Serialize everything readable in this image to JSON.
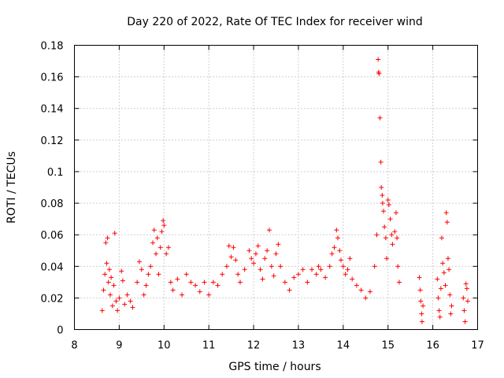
{
  "chart_data": {
    "type": "scatter",
    "title": "Day 220 of 2022, Rate Of TEC Index for receiver wind",
    "xlabel": "GPS time / hours",
    "ylabel": "ROTI / TECUs",
    "xlim": [
      8,
      17
    ],
    "ylim": [
      0,
      0.18
    ],
    "xticks": [
      "8",
      "9",
      "10",
      "11",
      "12",
      "13",
      "14",
      "15",
      "16",
      "17"
    ],
    "yticks": [
      "0",
      "0.02",
      "0.04",
      "0.06",
      "0.08",
      "0.1",
      "0.12",
      "0.14",
      "0.16",
      "0.18"
    ],
    "grid": true,
    "marker": "+",
    "color": "#ff0000",
    "series": [
      {
        "points": [
          [
            8.62,
            0.012
          ],
          [
            8.65,
            0.025
          ],
          [
            8.68,
            0.035
          ],
          [
            8.7,
            0.055
          ],
          [
            8.72,
            0.042
          ],
          [
            8.74,
            0.058
          ],
          [
            8.76,
            0.03
          ],
          [
            8.78,
            0.038
          ],
          [
            8.8,
            0.022
          ],
          [
            8.82,
            0.033
          ],
          [
            8.85,
            0.015
          ],
          [
            8.88,
            0.028
          ],
          [
            8.9,
            0.061
          ],
          [
            8.93,
            0.018
          ],
          [
            8.96,
            0.012
          ],
          [
            9.0,
            0.02
          ],
          [
            9.05,
            0.037
          ],
          [
            9.08,
            0.031
          ],
          [
            9.12,
            0.016
          ],
          [
            9.18,
            0.022
          ],
          [
            9.25,
            0.018
          ],
          [
            9.3,
            0.014
          ],
          [
            9.4,
            0.03
          ],
          [
            9.45,
            0.043
          ],
          [
            9.5,
            0.038
          ],
          [
            9.55,
            0.022
          ],
          [
            9.6,
            0.028
          ],
          [
            9.65,
            0.035
          ],
          [
            9.7,
            0.04
          ],
          [
            9.75,
            0.055
          ],
          [
            9.78,
            0.063
          ],
          [
            9.82,
            0.048
          ],
          [
            9.85,
            0.058
          ],
          [
            9.88,
            0.035
          ],
          [
            9.92,
            0.052
          ],
          [
            9.95,
            0.062
          ],
          [
            9.98,
            0.069
          ],
          [
            10.0,
            0.066
          ],
          [
            10.05,
            0.048
          ],
          [
            10.1,
            0.052
          ],
          [
            10.15,
            0.03
          ],
          [
            10.2,
            0.025
          ],
          [
            10.3,
            0.032
          ],
          [
            10.4,
            0.022
          ],
          [
            10.5,
            0.035
          ],
          [
            10.6,
            0.03
          ],
          [
            10.7,
            0.028
          ],
          [
            10.8,
            0.024
          ],
          [
            10.9,
            0.03
          ],
          [
            11.0,
            0.022
          ],
          [
            11.1,
            0.03
          ],
          [
            11.2,
            0.028
          ],
          [
            11.3,
            0.035
          ],
          [
            11.4,
            0.04
          ],
          [
            11.45,
            0.053
          ],
          [
            11.5,
            0.046
          ],
          [
            11.55,
            0.052
          ],
          [
            11.6,
            0.044
          ],
          [
            11.65,
            0.035
          ],
          [
            11.7,
            0.03
          ],
          [
            11.8,
            0.038
          ],
          [
            11.9,
            0.05
          ],
          [
            11.95,
            0.045
          ],
          [
            12.0,
            0.042
          ],
          [
            12.05,
            0.048
          ],
          [
            12.1,
            0.053
          ],
          [
            12.15,
            0.038
          ],
          [
            12.2,
            0.032
          ],
          [
            12.25,
            0.045
          ],
          [
            12.3,
            0.05
          ],
          [
            12.35,
            0.063
          ],
          [
            12.4,
            0.04
          ],
          [
            12.45,
            0.034
          ],
          [
            12.5,
            0.048
          ],
          [
            12.55,
            0.054
          ],
          [
            12.6,
            0.04
          ],
          [
            12.7,
            0.03
          ],
          [
            12.8,
            0.025
          ],
          [
            12.9,
            0.033
          ],
          [
            13.0,
            0.035
          ],
          [
            13.1,
            0.038
          ],
          [
            13.2,
            0.03
          ],
          [
            13.3,
            0.038
          ],
          [
            13.4,
            0.035
          ],
          [
            13.45,
            0.04
          ],
          [
            13.5,
            0.038
          ],
          [
            13.6,
            0.033
          ],
          [
            13.7,
            0.04
          ],
          [
            13.75,
            0.048
          ],
          [
            13.8,
            0.052
          ],
          [
            13.85,
            0.063
          ],
          [
            13.88,
            0.058
          ],
          [
            13.92,
            0.05
          ],
          [
            13.95,
            0.044
          ],
          [
            14.0,
            0.04
          ],
          [
            14.05,
            0.035
          ],
          [
            14.1,
            0.038
          ],
          [
            14.15,
            0.045
          ],
          [
            14.2,
            0.032
          ],
          [
            14.3,
            0.028
          ],
          [
            14.4,
            0.025
          ],
          [
            14.5,
            0.02
          ],
          [
            14.6,
            0.024
          ],
          [
            14.7,
            0.04
          ],
          [
            14.75,
            0.06
          ],
          [
            14.78,
            0.171
          ],
          [
            14.79,
            0.163
          ],
          [
            14.8,
            0.162
          ],
          [
            14.82,
            0.134
          ],
          [
            14.84,
            0.106
          ],
          [
            14.85,
            0.09
          ],
          [
            14.87,
            0.085
          ],
          [
            14.88,
            0.08
          ],
          [
            14.9,
            0.075
          ],
          [
            14.92,
            0.065
          ],
          [
            14.95,
            0.058
          ],
          [
            14.97,
            0.045
          ],
          [
            15.0,
            0.082
          ],
          [
            15.02,
            0.079
          ],
          [
            15.05,
            0.07
          ],
          [
            15.08,
            0.06
          ],
          [
            15.1,
            0.054
          ],
          [
            15.15,
            0.062
          ],
          [
            15.18,
            0.074
          ],
          [
            15.2,
            0.058
          ],
          [
            15.22,
            0.04
          ],
          [
            15.25,
            0.03
          ],
          [
            15.7,
            0.033
          ],
          [
            15.72,
            0.025
          ],
          [
            15.73,
            0.018
          ],
          [
            15.75,
            0.01
          ],
          [
            15.76,
            0.005
          ],
          [
            15.78,
            0.015
          ],
          [
            16.1,
            0.032
          ],
          [
            16.12,
            0.02
          ],
          [
            16.14,
            0.012
          ],
          [
            16.16,
            0.008
          ],
          [
            16.18,
            0.026
          ],
          [
            16.2,
            0.058
          ],
          [
            16.22,
            0.042
          ],
          [
            16.25,
            0.036
          ],
          [
            16.28,
            0.028
          ],
          [
            16.3,
            0.074
          ],
          [
            16.32,
            0.068
          ],
          [
            16.34,
            0.045
          ],
          [
            16.36,
            0.038
          ],
          [
            16.38,
            0.022
          ],
          [
            16.4,
            0.01
          ],
          [
            16.42,
            0.015
          ],
          [
            16.68,
            0.02
          ],
          [
            16.7,
            0.012
          ],
          [
            16.72,
            0.005
          ],
          [
            16.74,
            0.029
          ],
          [
            16.76,
            0.026
          ],
          [
            16.78,
            0.018
          ]
        ]
      }
    ]
  }
}
